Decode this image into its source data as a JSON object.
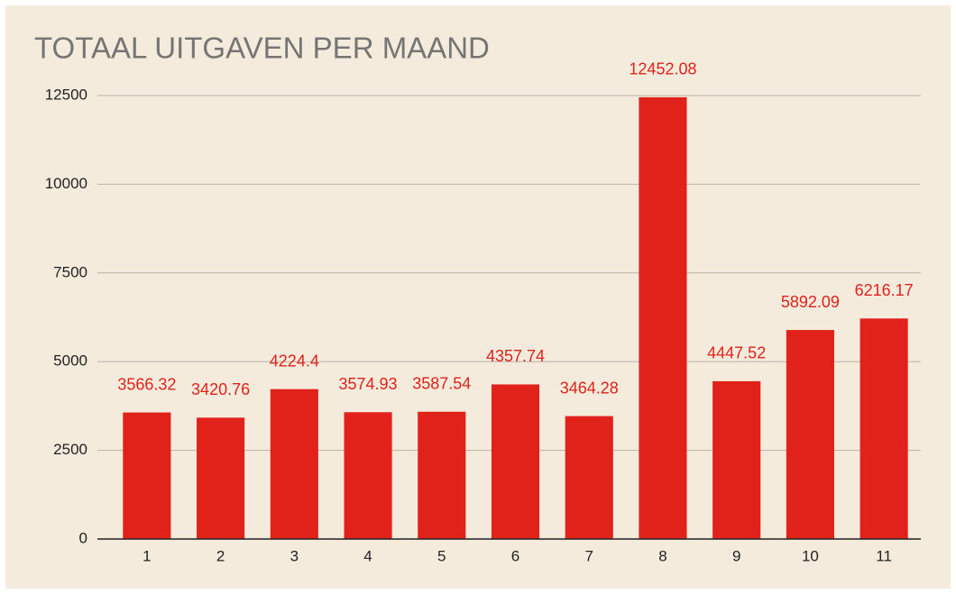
{
  "chart_data": {
    "type": "bar",
    "title": "TOTAAL UITGAVEN PER MAAND",
    "categories": [
      "1",
      "2",
      "3",
      "4",
      "5",
      "6",
      "7",
      "8",
      "9",
      "10",
      "11"
    ],
    "values": [
      3566.32,
      3420.76,
      4224.4,
      3574.93,
      3587.54,
      4357.74,
      3464.28,
      12452.08,
      4447.52,
      5892.09,
      6216.17
    ],
    "color": "#e0221a",
    "ylim": [
      0,
      12500
    ],
    "yticks": [
      0,
      2500,
      5000,
      7500,
      10000,
      12500
    ],
    "grid": true
  }
}
